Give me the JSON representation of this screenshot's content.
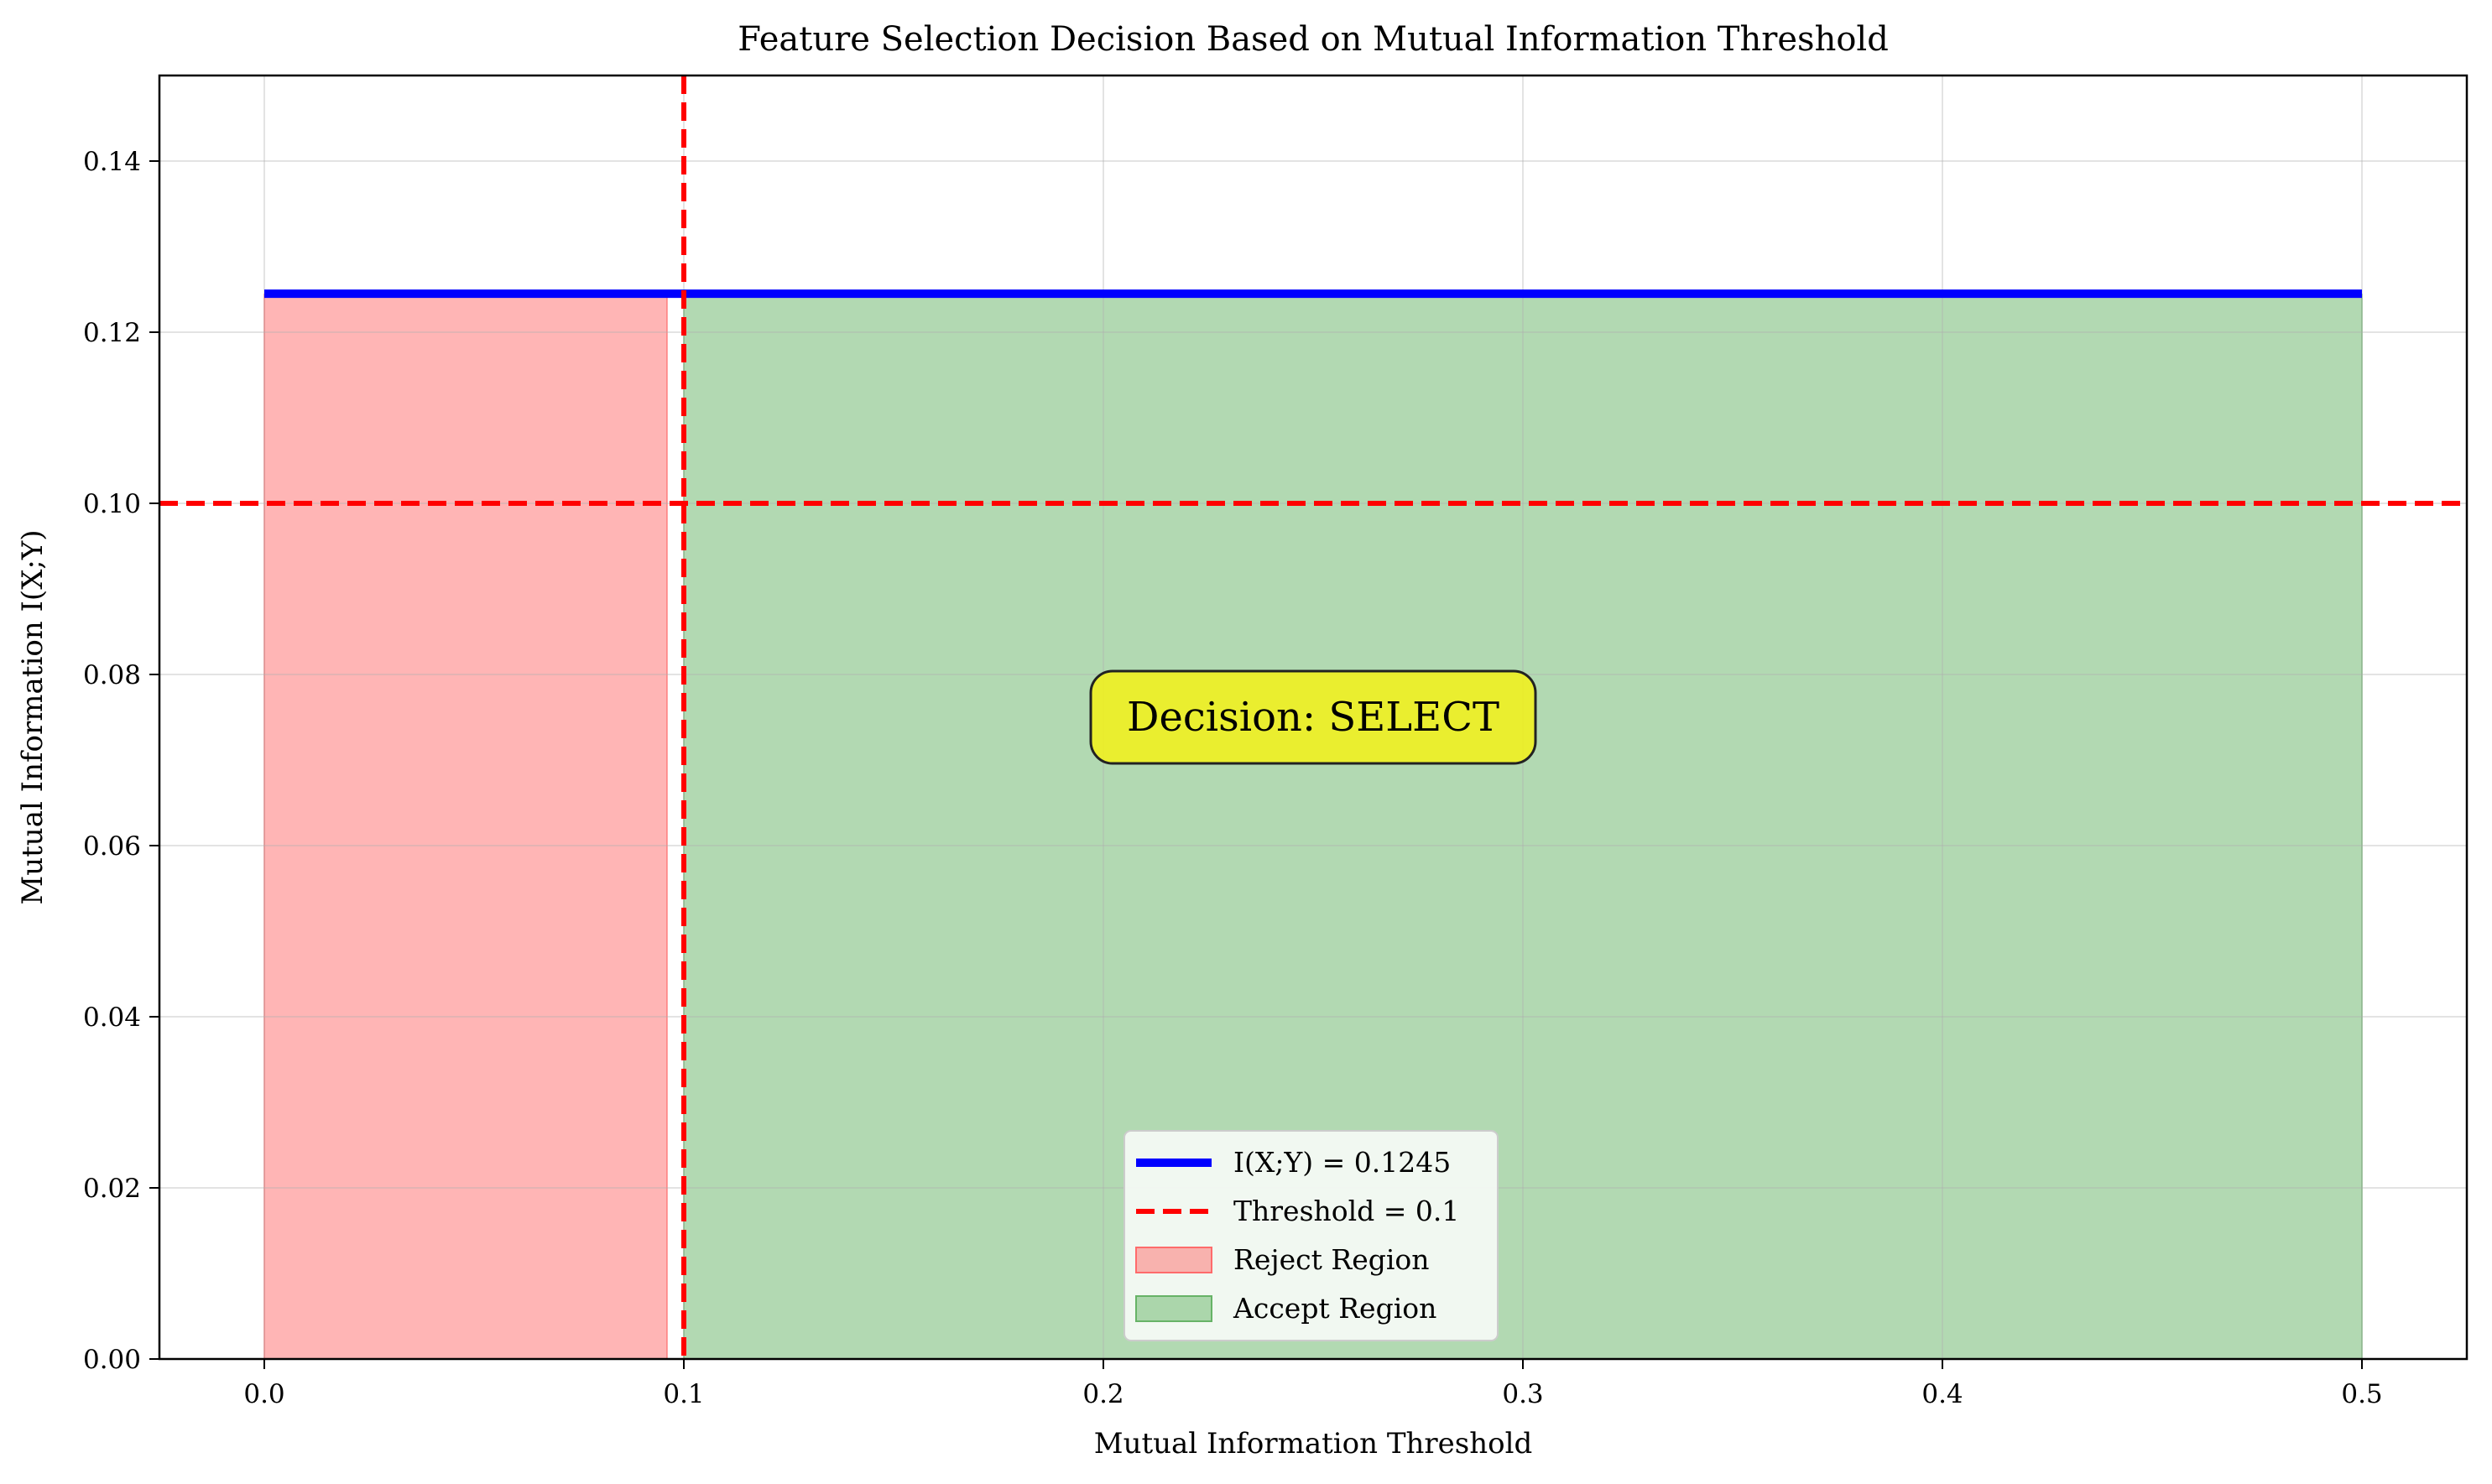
{
  "chart_data": {
    "type": "area",
    "title": "Feature Selection Decision Based on Mutual Information Threshold",
    "xlabel": "Mutual Information Threshold",
    "ylabel": "Mutual Information I(X;Y)",
    "xlim": [
      -0.025,
      0.525
    ],
    "ylim": [
      0,
      0.15
    ],
    "xticks": [
      0.0,
      0.1,
      0.2,
      0.3,
      0.4,
      0.5
    ],
    "xtick_labels": [
      "0.0",
      "0.1",
      "0.2",
      "0.3",
      "0.4",
      "0.5"
    ],
    "yticks": [
      0.0,
      0.02,
      0.04,
      0.06,
      0.08,
      0.1,
      0.12,
      0.14
    ],
    "ytick_labels": [
      "0.00",
      "0.02",
      "0.04",
      "0.06",
      "0.08",
      "0.10",
      "0.12",
      "0.14"
    ],
    "grid": true,
    "legend_position": "lower-center",
    "series": [
      {
        "name": "I(X;Y) = 0.1245",
        "kind": "line",
        "x": [
          0.0,
          0.5
        ],
        "y": [
          0.1245,
          0.1245
        ],
        "color": "#0000ff",
        "style": "solid"
      },
      {
        "name": "Threshold = 0.1",
        "kind": "threshold",
        "x_value": 0.1,
        "y_value": 0.1,
        "color": "#ff0000",
        "style": "dashed"
      },
      {
        "name": "Reject Region",
        "kind": "area",
        "x": [
          0.0,
          0.096
        ],
        "y_top": 0.1245,
        "color": "#ff6b6b"
      },
      {
        "name": "Accept Region",
        "kind": "area",
        "x": [
          0.1,
          0.5
        ],
        "y_top": 0.1245,
        "color": "#66b366"
      }
    ],
    "annotation": {
      "text": "Decision: SELECT",
      "x": 0.25,
      "y": 0.075,
      "bg_color": "#f0f020"
    }
  }
}
